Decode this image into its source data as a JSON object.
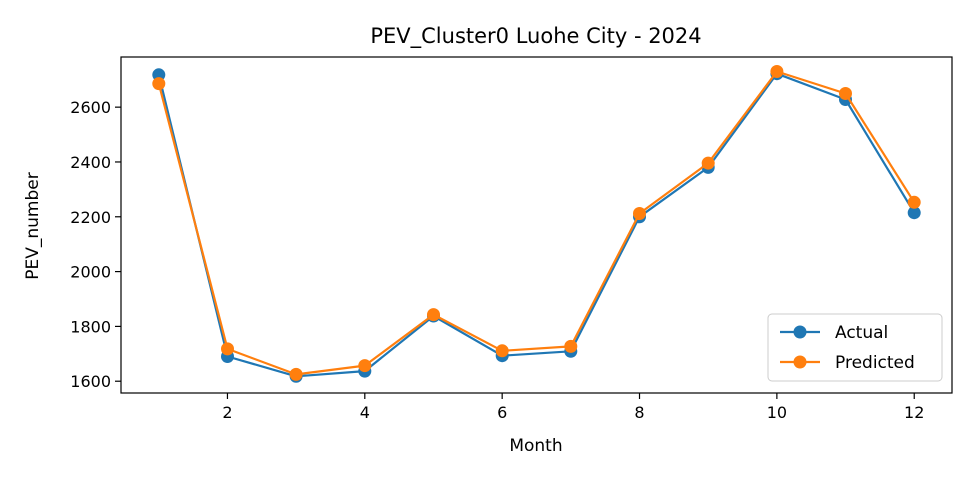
{
  "chart_data": {
    "type": "line",
    "title": "PEV_Cluster0 Luohe City - 2024",
    "xlabel": "Month",
    "ylabel": "PEV_number",
    "x": [
      1,
      2,
      3,
      4,
      5,
      6,
      7,
      8,
      9,
      10,
      11,
      12
    ],
    "xlim": [
      0.45,
      12.55
    ],
    "ylim": [
      1557,
      2783
    ],
    "xticks": [
      2,
      4,
      6,
      8,
      10,
      12
    ],
    "yticks": [
      1600,
      1800,
      2000,
      2200,
      2400,
      2600
    ],
    "grid": false,
    "legend_position": "bottom-right",
    "series": [
      {
        "name": "Actual",
        "color": "#1f77b4",
        "values": [
          2718,
          1690,
          1618,
          1637,
          1838,
          1693,
          1709,
          2200,
          2380,
          2722,
          2628,
          2215
        ]
      },
      {
        "name": "Predicted",
        "color": "#ff7f0e",
        "values": [
          2686,
          1718,
          1625,
          1657,
          1843,
          1711,
          1727,
          2212,
          2396,
          2730,
          2650,
          2253
        ]
      }
    ]
  }
}
